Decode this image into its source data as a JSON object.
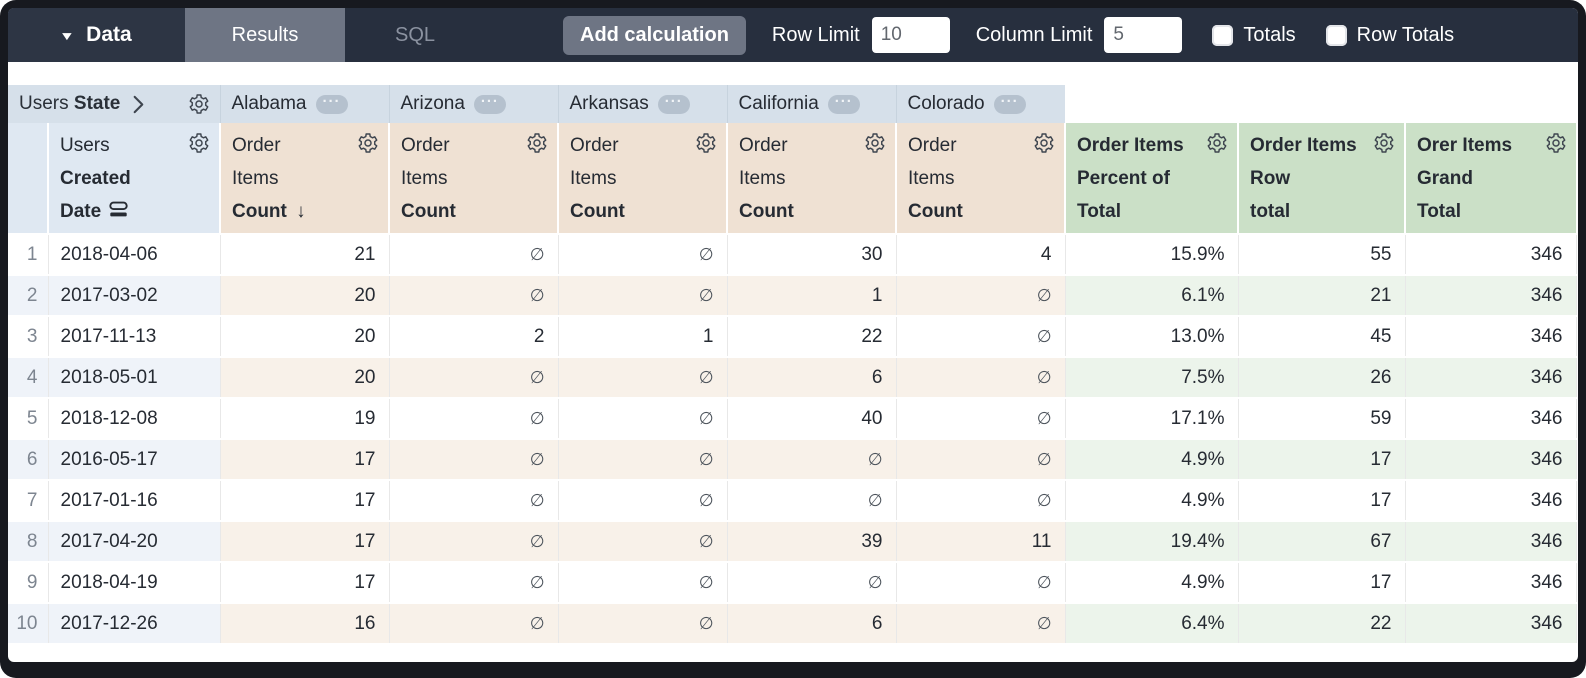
{
  "toolbar": {
    "data_label": "Data",
    "tabs": [
      {
        "label": "Results",
        "active": true
      },
      {
        "label": "SQL",
        "active": false
      }
    ],
    "add_calculation_label": "Add calculation",
    "row_limit_label": "Row Limit",
    "row_limit_value": "10",
    "column_limit_label": "Column Limit",
    "column_limit_value": "5",
    "totals_label": "Totals",
    "totals_checked": false,
    "row_totals_label": "Row Totals",
    "row_totals_checked": false
  },
  "icons": {
    "caret_down": "▼",
    "ellipsis": "···",
    "sort_desc": "↓"
  },
  "null_symbol": "∅",
  "pivot": {
    "label_regular": "Users",
    "label_bold": "State",
    "states": [
      "Alabama",
      "Arizona",
      "Arkansas",
      "California",
      "Colorado"
    ]
  },
  "headers": {
    "row_dimension": {
      "lines": [
        {
          "text": "Users",
          "bold": false
        },
        {
          "text": "Created",
          "bold": true
        },
        {
          "text": "Date",
          "bold": true,
          "icon": "subtotal-icon"
        }
      ]
    },
    "measure": {
      "lines": [
        {
          "text": "Order",
          "bold": false
        },
        {
          "text": "Items",
          "bold": false
        },
        {
          "text": "Count",
          "bold": true
        }
      ]
    },
    "sorted_column_index": 0,
    "calcs": [
      {
        "lines": [
          "Order Items",
          "Percent of",
          "Total"
        ]
      },
      {
        "lines": [
          "Order Items",
          "Row",
          "total"
        ]
      },
      {
        "lines": [
          "Orer Items",
          "Grand",
          "Total"
        ]
      }
    ]
  },
  "rows": [
    {
      "n": "1",
      "date": "2018-04-06",
      "states": [
        "21",
        null,
        null,
        "30",
        "4"
      ],
      "calcs": [
        "15.9%",
        "55",
        "346"
      ]
    },
    {
      "n": "2",
      "date": "2017-03-02",
      "states": [
        "20",
        null,
        null,
        "1",
        null
      ],
      "calcs": [
        "6.1%",
        "21",
        "346"
      ]
    },
    {
      "n": "3",
      "date": "2017-11-13",
      "states": [
        "20",
        "2",
        "1",
        "22",
        null
      ],
      "calcs": [
        "13.0%",
        "45",
        "346"
      ]
    },
    {
      "n": "4",
      "date": "2018-05-01",
      "states": [
        "20",
        null,
        null,
        "6",
        null
      ],
      "calcs": [
        "7.5%",
        "26",
        "346"
      ]
    },
    {
      "n": "5",
      "date": "2018-12-08",
      "states": [
        "19",
        null,
        null,
        "40",
        null
      ],
      "calcs": [
        "17.1%",
        "59",
        "346"
      ]
    },
    {
      "n": "6",
      "date": "2016-05-17",
      "states": [
        "17",
        null,
        null,
        null,
        null
      ],
      "calcs": [
        "4.9%",
        "17",
        "346"
      ]
    },
    {
      "n": "7",
      "date": "2017-01-16",
      "states": [
        "17",
        null,
        null,
        null,
        null
      ],
      "calcs": [
        "4.9%",
        "17",
        "346"
      ]
    },
    {
      "n": "8",
      "date": "2017-04-20",
      "states": [
        "17",
        null,
        null,
        "39",
        "11"
      ],
      "calcs": [
        "19.4%",
        "67",
        "346"
      ]
    },
    {
      "n": "9",
      "date": "2018-04-19",
      "states": [
        "17",
        null,
        null,
        null,
        null
      ],
      "calcs": [
        "4.9%",
        "17",
        "346"
      ]
    },
    {
      "n": "10",
      "date": "2017-12-26",
      "states": [
        "16",
        null,
        null,
        "6",
        null
      ],
      "calcs": [
        "6.4%",
        "22",
        "346"
      ]
    }
  ],
  "colors": {
    "topbar_bg": "#272f3e",
    "selected_tab_bg": "#6e7584",
    "pivot_header_bg": "#d6e0ea",
    "dimension_header_bg": "#dfe8f2",
    "measure_header_bg": "#efe1d3",
    "calc_header_bg": "#cbe0c7",
    "row_tint_dimension": "#eff3f9",
    "row_tint_measure": "#f8f1e9",
    "row_tint_calc": "#ecf4eb"
  }
}
